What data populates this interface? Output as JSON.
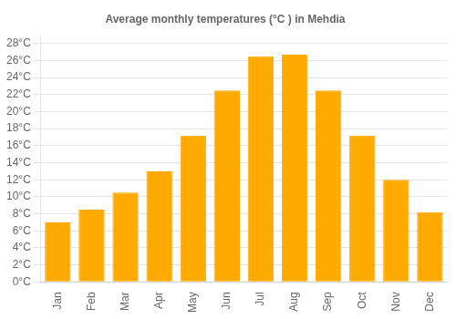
{
  "chart_data": {
    "type": "bar",
    "title": "Average monthly temperatures (°C ) in Mehdia",
    "categories": [
      "Jan",
      "Feb",
      "Mar",
      "Apr",
      "May",
      "Jun",
      "Jul",
      "Aug",
      "Sep",
      "Oct",
      "Nov",
      "Dec"
    ],
    "values": [
      7.0,
      8.5,
      10.5,
      13.0,
      17.2,
      22.5,
      26.5,
      26.7,
      22.5,
      17.2,
      12.0,
      8.2
    ],
    "color": "#FFAA00",
    "ylim": [
      0,
      29
    ],
    "yticks": [
      {
        "value": 0,
        "label": "0°C"
      },
      {
        "value": 2,
        "label": "2°C"
      },
      {
        "value": 4,
        "label": "4°C"
      },
      {
        "value": 6,
        "label": "6°C"
      },
      {
        "value": 8,
        "label": "8°C"
      },
      {
        "value": 10,
        "label": "10°C"
      },
      {
        "value": 12,
        "label": "12°C"
      },
      {
        "value": 14,
        "label": "14°C"
      },
      {
        "value": 16,
        "label": "16°C"
      },
      {
        "value": 18,
        "label": "18°C"
      },
      {
        "value": 20,
        "label": "20°C"
      },
      {
        "value": 22,
        "label": "22°C"
      },
      {
        "value": 24,
        "label": "24°C"
      },
      {
        "value": 26,
        "label": "26°C"
      },
      {
        "value": 28,
        "label": "28°C"
      }
    ],
    "grid": "y"
  }
}
